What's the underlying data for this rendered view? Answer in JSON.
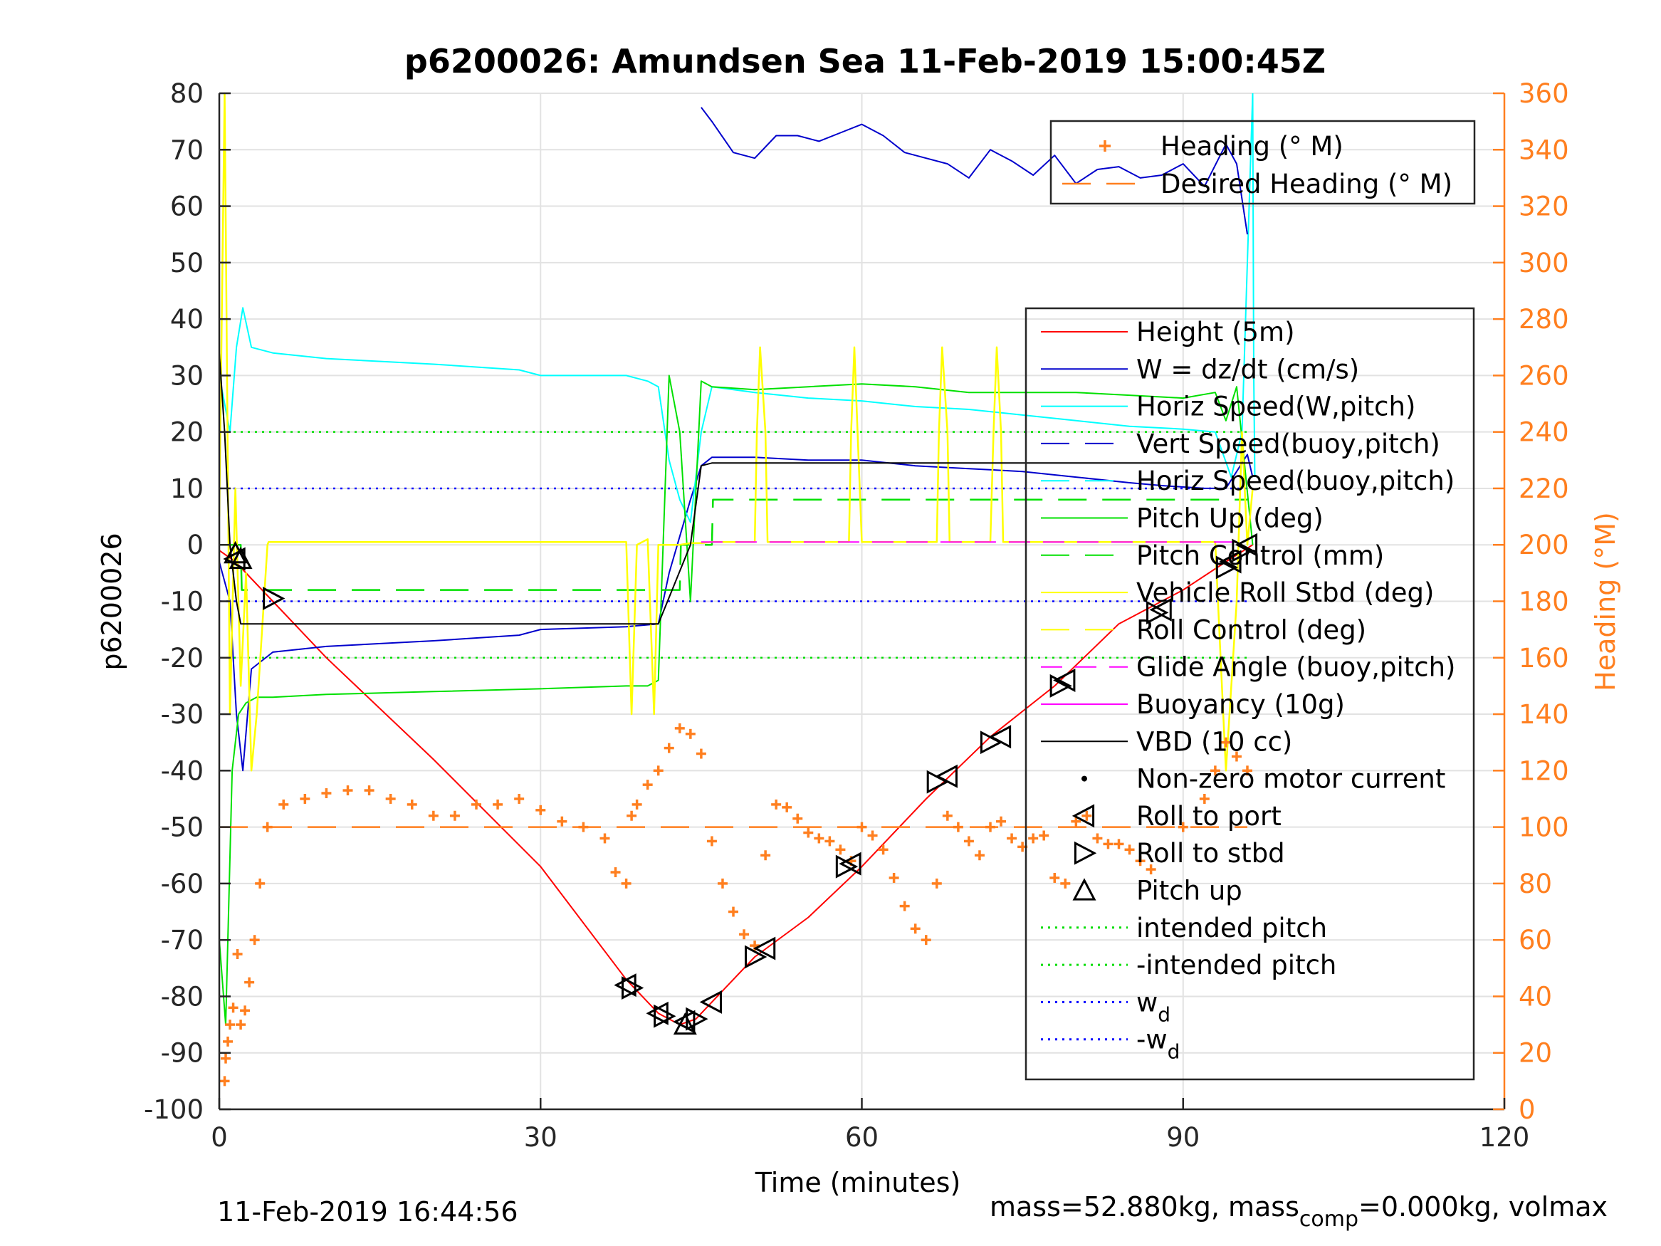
{
  "chart_data": {
    "type": "line",
    "title": "p6200026: Amundsen Sea 11-Feb-2019 15:00:45Z",
    "xlabel": "Time (minutes)",
    "ylabel": "p6200026",
    "y2label": "Heading (°M)",
    "xlim": [
      0,
      120
    ],
    "ylim": [
      -100,
      80
    ],
    "y2lim": [
      0,
      360
    ],
    "grid": true,
    "xticks": [
      "0",
      "30",
      "60",
      "90",
      "120"
    ],
    "yticks": [
      "80",
      "70",
      "60",
      "50",
      "40",
      "30",
      "20",
      "10",
      "0",
      "-10",
      "-20",
      "-30",
      "-40",
      "-50",
      "-60",
      "-70",
      "-80",
      "-90",
      "-100"
    ],
    "y2ticks": [
      "360",
      "340",
      "320",
      "300",
      "280",
      "260",
      "240",
      "220",
      "200",
      "180",
      "160",
      "140",
      "120",
      "100",
      "80",
      "60",
      "40",
      "20",
      "0"
    ],
    "legend_right_axis": {
      "placement": "top-right",
      "entries": [
        "Heading (° M)",
        "Desired Heading (° M)"
      ]
    },
    "legend_main": {
      "placement": "right",
      "entries": [
        "Height (5m)",
        "W = dz/dt (cm/s)",
        "Horiz Speed(W,pitch)",
        "Vert Speed(buoy,pitch)",
        "Horiz Speed(buoy,pitch)",
        "Pitch Up (deg)",
        "Pitch Control (mm)",
        "Vehicle Roll Stbd (deg)",
        "Roll Control (deg)",
        "Glide Angle (buoy,pitch)",
        "Buoyancy (10g)",
        "VBD (10 cc)",
        "Non-zero motor current",
        "Roll to port",
        "Roll to stbd",
        "Pitch up",
        "intended pitch",
        "-intended pitch",
        "w",
        "-w"
      ],
      "subscript_entries": {
        "18": "d",
        "19": "d"
      }
    },
    "colors": {
      "height": "#ff0000",
      "w": "#0000cc",
      "horiz_speed": "#00ffff",
      "pitch": "#00e000",
      "roll": "#ffff00",
      "glide": "#ff00ff",
      "vbd": "#000000",
      "heading": "#ff7f1f",
      "intended_pitch": "#00dd00",
      "wd": "#0000ff"
    },
    "series": [
      {
        "name": "Height (5m)",
        "axis": "left",
        "x": [
          0,
          1.5,
          5,
          10,
          20,
          30,
          38,
          41,
          43,
          44.5,
          46,
          50,
          55,
          60,
          66,
          72,
          78,
          84,
          90,
          94,
          96.5
        ],
        "y": [
          -1,
          -3,
          -10,
          -20,
          -38,
          -57,
          -77,
          -83,
          -85,
          -84,
          -81,
          -73,
          -66,
          -57,
          -45,
          -34,
          -25,
          -14,
          -8,
          -3,
          0
        ]
      },
      {
        "name": "W = dz/dt (cm/s)",
        "axis": "left",
        "x": [
          0,
          1,
          1.6,
          2.2,
          3,
          5,
          10,
          20,
          28,
          30,
          38,
          41,
          42,
          44,
          45,
          46,
          50,
          55,
          60,
          65,
          70,
          75,
          80,
          85,
          88,
          92,
          94,
          95,
          96,
          96.5
        ],
        "y": [
          -3,
          -10,
          -30,
          -40,
          -22,
          -19,
          -18,
          -17,
          -16,
          -15,
          -14.5,
          -14,
          -5,
          8,
          14,
          15.5,
          15.5,
          15,
          15,
          14,
          13.5,
          13,
          12,
          11,
          10.5,
          10,
          10,
          13,
          16,
          12
        ]
      },
      {
        "name": "Horiz Speed(W,pitch)",
        "axis": "left",
        "x": [
          0,
          1,
          1.6,
          2.2,
          3,
          5,
          10,
          20,
          28,
          30,
          38,
          40,
          41,
          42,
          43,
          44,
          45,
          46,
          50,
          55,
          60,
          65,
          70,
          75,
          80,
          85,
          90,
          93,
          94.5,
          95.5,
          96.5
        ],
        "y": [
          30,
          20,
          35,
          42,
          35,
          34,
          33,
          32,
          31,
          30,
          30,
          29,
          28,
          15,
          8,
          4,
          20,
          28,
          27,
          26,
          25.5,
          24.5,
          24,
          23,
          22,
          21,
          20.5,
          20,
          12,
          20,
          80
        ]
      },
      {
        "name": "Horiz Speed(W,pitch) spike",
        "axis": "left",
        "x": [
          96.5,
          96.6,
          96.7
        ],
        "y": [
          80,
          30,
          12
        ]
      },
      {
        "name": "Pitch Up (deg)",
        "axis": "left",
        "x": [
          0,
          0.6,
          1.2,
          1.8,
          2.5,
          3.5,
          5,
          10,
          20,
          30,
          38,
          40,
          41,
          42,
          43,
          44,
          45,
          46,
          50,
          55,
          60,
          65,
          70,
          75,
          80,
          85,
          90,
          93,
          94,
          95,
          96.5
        ],
        "y": [
          -70,
          -85,
          -40,
          -30,
          -28,
          -27,
          -27,
          -26.5,
          -26,
          -25.5,
          -25,
          -25,
          -24,
          30,
          20,
          -10,
          29,
          28,
          27.5,
          28,
          28.5,
          28,
          27,
          27,
          27,
          26.5,
          26,
          27,
          22,
          28,
          0
        ]
      },
      {
        "name": "Pitch Control (mm)",
        "axis": "left",
        "x": [
          0,
          2,
          2.1,
          43,
          43.1,
          46,
          46.1,
          96
        ],
        "y": [
          0,
          0,
          -8,
          -8,
          0,
          0,
          8,
          8
        ]
      },
      {
        "name": "Vehicle Roll Stbd (deg)",
        "axis": "left",
        "x": [
          0,
          0.5,
          1,
          1.5,
          2,
          2.5,
          3,
          3.5,
          4.5,
          4.6,
          38,
          38.5,
          39,
          40,
          40.6,
          41,
          43,
          44,
          45,
          46,
          50,
          50.2,
          50.5,
          51,
          51.2,
          58.8,
          59,
          59.3,
          59.6,
          60,
          60.3,
          67,
          67.2,
          67.5,
          68,
          68.2,
          72,
          72.3,
          72.6,
          73,
          73.2,
          93,
          93.5,
          94,
          95,
          95.5,
          96,
          96.5
        ],
        "y": [
          5,
          80,
          -30,
          10,
          -25,
          -5,
          -40,
          -30,
          0,
          0.5,
          0.5,
          -30,
          0,
          1,
          -30,
          0,
          0,
          0.3,
          0.3,
          0.5,
          0.5,
          20,
          35,
          20,
          0.5,
          0.5,
          20,
          35,
          20,
          0.5,
          0.5,
          0.5,
          20,
          35,
          20,
          0.5,
          0.5,
          20,
          35,
          20,
          0.5,
          0.5,
          -20,
          -40,
          -10,
          20,
          0,
          10
        ]
      },
      {
        "name": "VBD (10 cc)",
        "axis": "left",
        "x": [
          0,
          0.5,
          1,
          1.6,
          2,
          41,
          44,
          45,
          46,
          90,
          94,
          96.5
        ],
        "y": [
          34,
          20,
          0,
          -10,
          -14,
          -14,
          0,
          14,
          14.5,
          14.5,
          14.5,
          14.5
        ]
      },
      {
        "name": "Glide Angle (buoy,pitch)",
        "axis": "left",
        "x": [
          45,
          96
        ],
        "y": [
          0.5,
          0.5
        ]
      },
      {
        "name": "Heading (° M)",
        "axis": "right",
        "x": [
          0.5,
          0.6,
          0.8,
          1,
          1.3,
          1.7,
          2,
          2.4,
          2.8,
          3.3,
          3.8,
          4.5,
          6,
          8,
          10,
          12,
          14,
          16,
          18,
          20,
          22,
          24,
          26,
          28,
          30,
          32,
          34,
          36,
          37,
          38,
          38.5,
          39,
          40,
          41,
          42,
          43,
          44,
          45,
          46,
          47,
          48,
          49,
          50,
          51,
          52,
          53,
          54,
          55,
          56,
          57,
          58,
          59,
          60,
          61,
          62,
          63,
          64,
          65,
          66,
          67,
          68,
          69,
          70,
          71,
          72,
          73,
          74,
          75,
          76,
          77,
          78,
          79,
          80,
          81,
          82,
          83,
          84,
          85,
          86,
          87,
          90,
          92,
          93,
          94,
          95,
          96
        ],
        "y": [
          10,
          18,
          24,
          30,
          36,
          55,
          30,
          35,
          45,
          60,
          80,
          100,
          108,
          110,
          112,
          113,
          113,
          110,
          108,
          104,
          104,
          108,
          108,
          110,
          106,
          102,
          100,
          96,
          84,
          80,
          104,
          108,
          115,
          120,
          128,
          135,
          133,
          126,
          95,
          80,
          70,
          62,
          58,
          90,
          108,
          107,
          103,
          98,
          96,
          95,
          92,
          88,
          100,
          97,
          92,
          82,
          72,
          64,
          60,
          80,
          104,
          100,
          95,
          90,
          100,
          102,
          96,
          93,
          96,
          97,
          82,
          80,
          102,
          104,
          96,
          94,
          94,
          92,
          88,
          85,
          100,
          110,
          120,
          130,
          125,
          120
        ]
      },
      {
        "name": "Desired Heading (° M)",
        "axis": "right",
        "x": [
          0,
          96
        ],
        "y": [
          100,
          100
        ]
      },
      {
        "name": "Vert Speed(buoy,pitch)",
        "axis": "right",
        "x": [
          45,
          46,
          48,
          50,
          52,
          54,
          56,
          58,
          60,
          62,
          64,
          66,
          68,
          70,
          72,
          74,
          76,
          78,
          80,
          82,
          84,
          86,
          88,
          90,
          92,
          94,
          95,
          96
        ],
        "y": [
          355,
          350,
          339,
          337,
          345,
          345,
          343,
          346,
          349,
          345,
          339,
          337,
          335,
          330,
          340,
          336,
          331,
          338,
          328,
          333,
          334,
          330,
          331,
          335,
          327,
          342,
          335,
          310
        ]
      }
    ],
    "reference_lines": [
      {
        "name": "intended pitch",
        "y": 20
      },
      {
        "name": "-intended pitch",
        "y": -20
      },
      {
        "name": "w_d",
        "y": 10
      },
      {
        "name": "-w_d",
        "y": -10
      }
    ],
    "markers": {
      "roll_to_port": [
        [
          1.5,
          -2.5
        ],
        [
          38,
          -78
        ],
        [
          41,
          -83
        ],
        [
          43.5,
          -84.5
        ],
        [
          46,
          -81
        ],
        [
          51,
          -71.5
        ],
        [
          59,
          -56.5
        ],
        [
          68,
          -41
        ],
        [
          73,
          -34
        ],
        [
          79,
          -24
        ],
        [
          88,
          -11.5
        ],
        [
          94.5,
          -3
        ],
        [
          96,
          0
        ]
      ],
      "roll_to_stbd": [
        [
          5,
          -9.5
        ],
        [
          38.5,
          -78.5
        ],
        [
          41.5,
          -83.5
        ],
        [
          44.5,
          -84
        ],
        [
          50,
          -73
        ],
        [
          58.5,
          -57
        ],
        [
          67,
          -42
        ],
        [
          72,
          -35
        ],
        [
          78.5,
          -25
        ],
        [
          87.5,
          -12
        ],
        [
          94,
          -4
        ],
        [
          95.5,
          -1
        ]
      ],
      "pitch_up": [
        [
          1.5,
          -1.5
        ],
        [
          2,
          -2.5
        ],
        [
          43.5,
          -85
        ]
      ]
    }
  },
  "footer": {
    "datetime": "11-Feb-2019 16:44:56",
    "mass_text_a": "mass=52.880kg, mass",
    "mass_sub": "comp",
    "mass_text_b": "=0.000kg, volmax"
  }
}
